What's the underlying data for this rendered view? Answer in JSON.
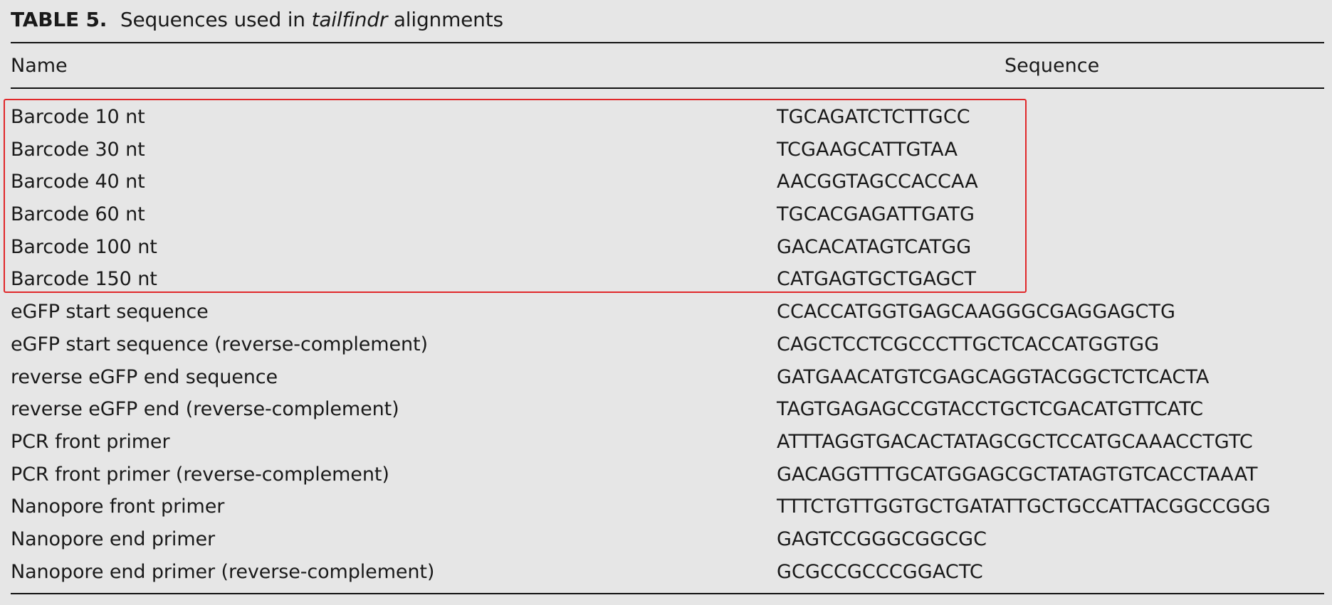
{
  "caption": {
    "label": "TABLE 5.",
    "text_before": "Sequences used in",
    "text_italic": "tailfindr",
    "text_after": "alignments"
  },
  "columns": {
    "name": "Name",
    "sequence": "Sequence"
  },
  "rows": [
    {
      "name": "Barcode 10 nt",
      "sequence": "TGCAGATCTCTTGCC"
    },
    {
      "name": "Barcode 30 nt",
      "sequence": "TCGAAGCATTGTAA"
    },
    {
      "name": "Barcode 40 nt",
      "sequence": "AACGGTAGCCACCAA"
    },
    {
      "name": "Barcode 60 nt",
      "sequence": "TGCACGAGATTGATG"
    },
    {
      "name": "Barcode 100 nt",
      "sequence": "GACACATAGTCATGG"
    },
    {
      "name": "Barcode 150 nt",
      "sequence": "CATGAGTGCTGAGCT"
    },
    {
      "name": "eGFP start sequence",
      "sequence": "CCACCATGGTGAGCAAGGGCGAGGAGCTG"
    },
    {
      "name": "eGFP start sequence (reverse-complement)",
      "sequence": "CAGCTCCTCGCCCTTGCTCACCATGGTGG"
    },
    {
      "name": "reverse eGFP end sequence",
      "sequence": "GATGAACATGTCGAGCAGGTACGGCTCTCACTA"
    },
    {
      "name": "reverse eGFP end (reverse-complement)",
      "sequence": "TAGTGAGAGCCGTACCTGCTCGACATGTTCATC"
    },
    {
      "name": "PCR front primer",
      "sequence": "ATTTAGGTGACACTATAGCGCTCCATGCAAACCTGTC"
    },
    {
      "name": "PCR front primer (reverse-complement)",
      "sequence": "GACAGGTTTGCATGGAGCGCTATAGTGTCACCTAAAT"
    },
    {
      "name": "Nanopore front primer",
      "sequence": "TTTCTGTTGGTGCTGATATTGCTGCCATTACGGCCGGG"
    },
    {
      "name": "Nanopore end primer",
      "sequence": "GAGTCCGGGCGGCGC"
    },
    {
      "name": "Nanopore end primer (reverse-complement)",
      "sequence": "GCGCCGCCCGGACTC"
    }
  ],
  "highlight": {
    "color": "#e0282a",
    "rows_highlighted": 6
  }
}
